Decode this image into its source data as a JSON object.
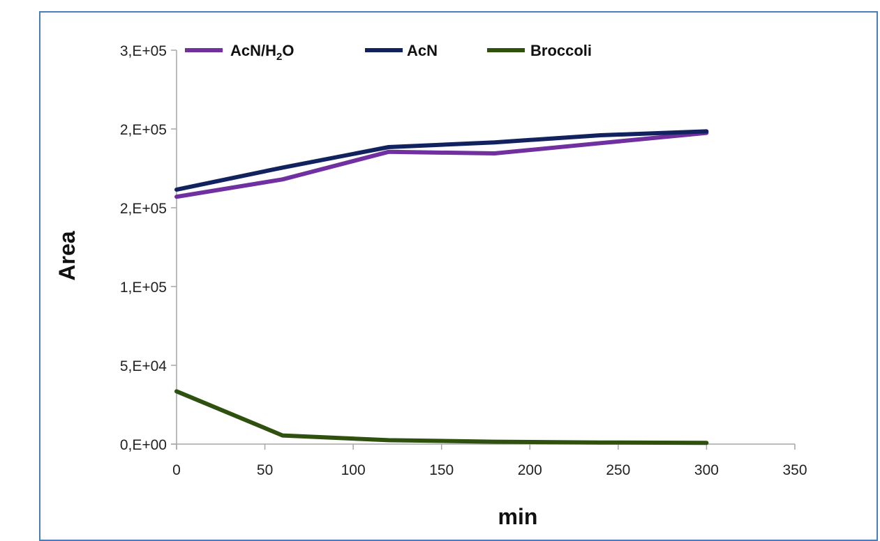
{
  "chart_data": {
    "type": "line",
    "xlabel": "min",
    "ylabel": "Area",
    "xlim": [
      0,
      350
    ],
    "ylim": [
      0,
      250000
    ],
    "x_ticks": [
      0,
      50,
      100,
      150,
      200,
      250,
      300,
      350
    ],
    "x_tick_labels": [
      "0",
      "50",
      "100",
      "150",
      "200",
      "250",
      "300",
      "350"
    ],
    "y_ticks": [
      0,
      50000,
      100000,
      150000,
      200000,
      250000
    ],
    "y_tick_labels": [
      "0,E+00",
      "5,E+04",
      "1,E+05",
      "2,E+05",
      "2,E+05",
      "3,E+05"
    ],
    "grid": false,
    "legend_position": "top",
    "series": [
      {
        "name": "AcN/H2O",
        "name_main": "AcN/H",
        "name_sub": "2",
        "name_tail": "O",
        "color": "#7030a0",
        "x": [
          0,
          60,
          120,
          180,
          240,
          300
        ],
        "y": [
          157000,
          168000,
          185500,
          184500,
          191000,
          197500
        ]
      },
      {
        "name": "AcN",
        "color": "#12225e",
        "x": [
          0,
          60,
          120,
          180,
          240,
          300
        ],
        "y": [
          161500,
          175500,
          188500,
          191500,
          196000,
          198500
        ]
      },
      {
        "name": "Broccoli",
        "color": "#2e5110",
        "x": [
          0,
          60,
          120,
          180,
          240,
          300
        ],
        "y": [
          33500,
          5500,
          2500,
          1500,
          1000,
          800
        ]
      }
    ]
  }
}
